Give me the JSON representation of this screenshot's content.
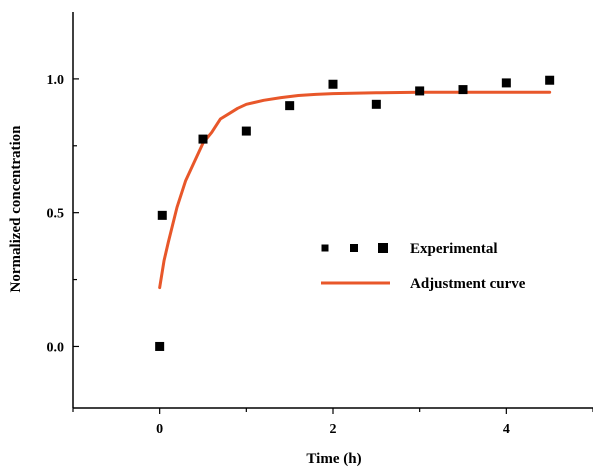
{
  "chart_data": {
    "type": "scatter",
    "title": "",
    "xlabel": "Time (h)",
    "ylabel": "Normalized concentration",
    "xlim": [
      -1,
      5
    ],
    "ylim": [
      -0.23,
      1.25
    ],
    "grid": false,
    "x_ticks": [
      {
        "value": 0,
        "label": "0"
      },
      {
        "value": 2,
        "label": "2"
      },
      {
        "value": 4,
        "label": "4"
      }
    ],
    "y_ticks": [
      {
        "value": 0.0,
        "label": "0.0"
      },
      {
        "value": 0.5,
        "label": "0.5"
      },
      {
        "value": 1.0,
        "label": "1.0"
      }
    ],
    "legend": {
      "placement": "center-right",
      "entries": [
        {
          "label": "Experimental",
          "kind": "markers"
        },
        {
          "label": "Adjustment curve",
          "kind": "line"
        }
      ]
    },
    "series": [
      {
        "name": "Experimental",
        "kind": "scatter",
        "color": "#000000",
        "marker": "square",
        "points": [
          {
            "x": 0.0,
            "y": 0.0
          },
          {
            "x": 0.03,
            "y": 0.49
          },
          {
            "x": 0.5,
            "y": 0.775
          },
          {
            "x": 1.0,
            "y": 0.805
          },
          {
            "x": 1.5,
            "y": 0.9
          },
          {
            "x": 2.0,
            "y": 0.98
          },
          {
            "x": 2.5,
            "y": 0.905
          },
          {
            "x": 3.0,
            "y": 0.955
          },
          {
            "x": 3.5,
            "y": 0.96
          },
          {
            "x": 4.0,
            "y": 0.985
          },
          {
            "x": 4.5,
            "y": 0.995
          }
        ]
      },
      {
        "name": "Adjustment curve",
        "kind": "line",
        "color": "#e8572a",
        "points": [
          {
            "x": 0.0,
            "y": 0.22
          },
          {
            "x": 0.05,
            "y": 0.32
          },
          {
            "x": 0.1,
            "y": 0.39
          },
          {
            "x": 0.2,
            "y": 0.52
          },
          {
            "x": 0.3,
            "y": 0.62
          },
          {
            "x": 0.4,
            "y": 0.69
          },
          {
            "x": 0.5,
            "y": 0.76
          },
          {
            "x": 0.6,
            "y": 0.8
          },
          {
            "x": 0.7,
            "y": 0.85
          },
          {
            "x": 0.8,
            "y": 0.87
          },
          {
            "x": 0.9,
            "y": 0.89
          },
          {
            "x": 1.0,
            "y": 0.905
          },
          {
            "x": 1.2,
            "y": 0.92
          },
          {
            "x": 1.4,
            "y": 0.93
          },
          {
            "x": 1.6,
            "y": 0.938
          },
          {
            "x": 1.8,
            "y": 0.942
          },
          {
            "x": 2.0,
            "y": 0.945
          },
          {
            "x": 2.5,
            "y": 0.948
          },
          {
            "x": 3.0,
            "y": 0.95
          },
          {
            "x": 3.5,
            "y": 0.95
          },
          {
            "x": 4.0,
            "y": 0.95
          },
          {
            "x": 4.5,
            "y": 0.95
          }
        ]
      }
    ]
  }
}
